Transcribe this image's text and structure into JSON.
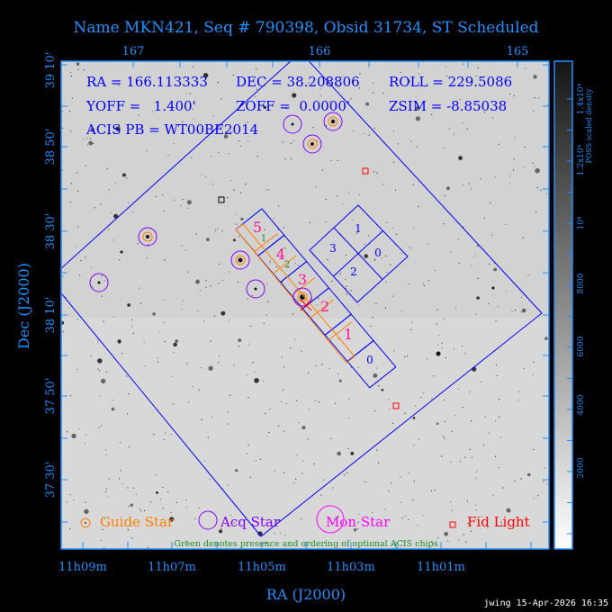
{
  "title": "Name MKN421, Seq # 790398, Obsid 31734, ST Scheduled",
  "info": {
    "ra": "RA = 166.113333",
    "dec": "DEC = 38.208806",
    "roll": "ROLL = 229.5086",
    "yoff": "YOFF =   1.400'",
    "zoff": "ZOFF =  0.0000'",
    "zsim": "ZSIM = -8.85038",
    "acis_pb": "ACIS PB = WT00BE2014"
  },
  "chart_data": {
    "type": "scatter",
    "title": "Name MKN421, Seq # 790398, Obsid 31734, ST Scheduled",
    "xlabel": "RA (J2000)",
    "ylabel": "Dec (J2000)",
    "x_ticks_bottom": [
      "11h09m",
      "11h07m",
      "11h05m",
      "11h03m",
      "11h01m"
    ],
    "x_ticks_top": [
      "167",
      "166",
      "165"
    ],
    "y_ticks": [
      "39 10'",
      "38 50'",
      "38 30'",
      "38 10'",
      "37 50'",
      "37 30'"
    ],
    "colorbar": {
      "label": "POSS scaled density",
      "ticks": [
        "2000",
        "4000",
        "6000",
        "8000",
        "10⁴",
        "1.2x10⁴",
        "1.4x10⁴"
      ]
    },
    "legend": [
      {
        "label": "Guide Star",
        "color": "#ff8000"
      },
      {
        "label": "Acq Star",
        "color": "#8000ff"
      },
      {
        "label": "Mon Star",
        "color": "#ff00ff"
      },
      {
        "label": "Fid Light",
        "color": "#ff0000"
      }
    ],
    "legend_placement": "bottom",
    "note": "Green denotes presence and ordering of optional ACIS chips",
    "acis_s_chip_labels": [
      "5",
      "4",
      "3",
      "2",
      "1",
      "0"
    ],
    "optional_chip_labels": [
      "1",
      "2"
    ],
    "acis_i_chip_labels": [
      "1",
      "3",
      "0",
      "2"
    ]
  },
  "footer": "jwing 15-Apr-2026 16:35",
  "colors": {
    "axis": "#1e90ff",
    "overlay": "#0000ff",
    "guide": "#ff8000",
    "acq": "#8000ff",
    "mon": "#ff00ff",
    "fid": "#ff0000",
    "chip_label": "#ff1493",
    "optional": "#228b22"
  }
}
